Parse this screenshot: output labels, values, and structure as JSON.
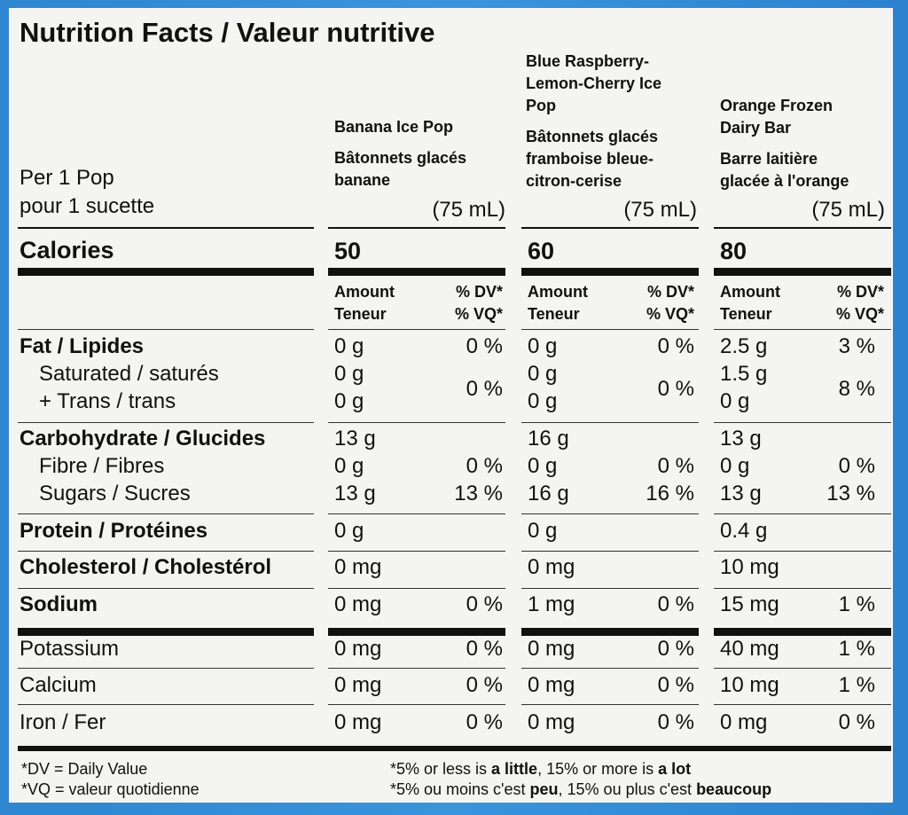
{
  "title": "Nutrition Facts / Valeur nutritive",
  "serving": {
    "line1": "Per 1 Pop",
    "line2": "pour 1 sucette"
  },
  "products": [
    {
      "name_en": "Banana Ice Pop",
      "name_fr": "Bâtonnets glacés banane",
      "size": "(75 mL)",
      "calories": "50",
      "values": [
        [
          "0 g",
          "0 %"
        ],
        [
          "0 g",
          ""
        ],
        [
          "0 g",
          ""
        ],
        [
          "13 g",
          ""
        ],
        [
          "0 g",
          "0 %"
        ],
        [
          "13 g",
          "13 %"
        ],
        [
          "0 g",
          ""
        ],
        [
          "0 mg",
          ""
        ],
        [
          "0 mg",
          "0 %"
        ],
        [
          "0 mg",
          "0 %"
        ],
        [
          "0 mg",
          "0 %"
        ],
        [
          "0 mg",
          "0 %"
        ]
      ],
      "sat_trans_dv": "0 %"
    },
    {
      "name_en": "Blue Raspberry-Lemon-Cherry Ice Pop",
      "name_fr": "Bâtonnets glacés framboise bleue-citron-cerise",
      "size": "(75 mL)",
      "calories": "60",
      "values": [
        [
          "0 g",
          "0 %"
        ],
        [
          "0 g",
          ""
        ],
        [
          "0 g",
          ""
        ],
        [
          "16 g",
          ""
        ],
        [
          "0 g",
          "0 %"
        ],
        [
          "16 g",
          "16 %"
        ],
        [
          "0 g",
          ""
        ],
        [
          "0 mg",
          ""
        ],
        [
          "1 mg",
          "0 %"
        ],
        [
          "0 mg",
          "0 %"
        ],
        [
          "0 mg",
          "0 %"
        ],
        [
          "0 mg",
          "0 %"
        ]
      ],
      "sat_trans_dv": "0 %"
    },
    {
      "name_en": "Orange Frozen Dairy Bar",
      "name_fr": "Barre laitière glacée à l'orange",
      "size": "(75 mL)",
      "calories": "80",
      "values": [
        [
          "2.5 g",
          "3 %"
        ],
        [
          "1.5 g",
          ""
        ],
        [
          "0 g",
          ""
        ],
        [
          "13 g",
          ""
        ],
        [
          "0 g",
          "0 %"
        ],
        [
          "13 g",
          "13 %"
        ],
        [
          "0.4 g",
          ""
        ],
        [
          "10 mg",
          ""
        ],
        [
          "15 mg",
          "1 %"
        ],
        [
          "40 mg",
          "1 %"
        ],
        [
          "10 mg",
          "1 %"
        ],
        [
          "0 mg",
          "0 %"
        ]
      ],
      "sat_trans_dv": "8 %"
    }
  ],
  "calories_label": "Calories",
  "col_headers": {
    "amount": "Amount",
    "teneur": "Teneur",
    "dv": "% DV*",
    "vq": "% VQ*"
  },
  "nutrients": [
    "Fat / Lipides",
    "Saturated / saturés",
    "+ Trans / trans",
    "Carbohydrate / Glucides",
    "Fibre / Fibres",
    "Sugars / Sucres",
    "Protein / Protéines",
    "Cholesterol / Cholestérol",
    "Sodium",
    "Potassium",
    "Calcium",
    "Iron / Fer"
  ],
  "footnotes": {
    "dv": "*DV = Daily Value",
    "vq": "*VQ = valeur quotidienne",
    "en_pre": "*5% or less is ",
    "en_little": "a little",
    "en_mid": ", 15% or more is ",
    "en_lot": "a lot",
    "fr_pre": "*5% ou moins c'est ",
    "fr_peu": "peu",
    "fr_mid": ", 15% ou plus c'est ",
    "fr_beaucoup": "beaucoup"
  }
}
